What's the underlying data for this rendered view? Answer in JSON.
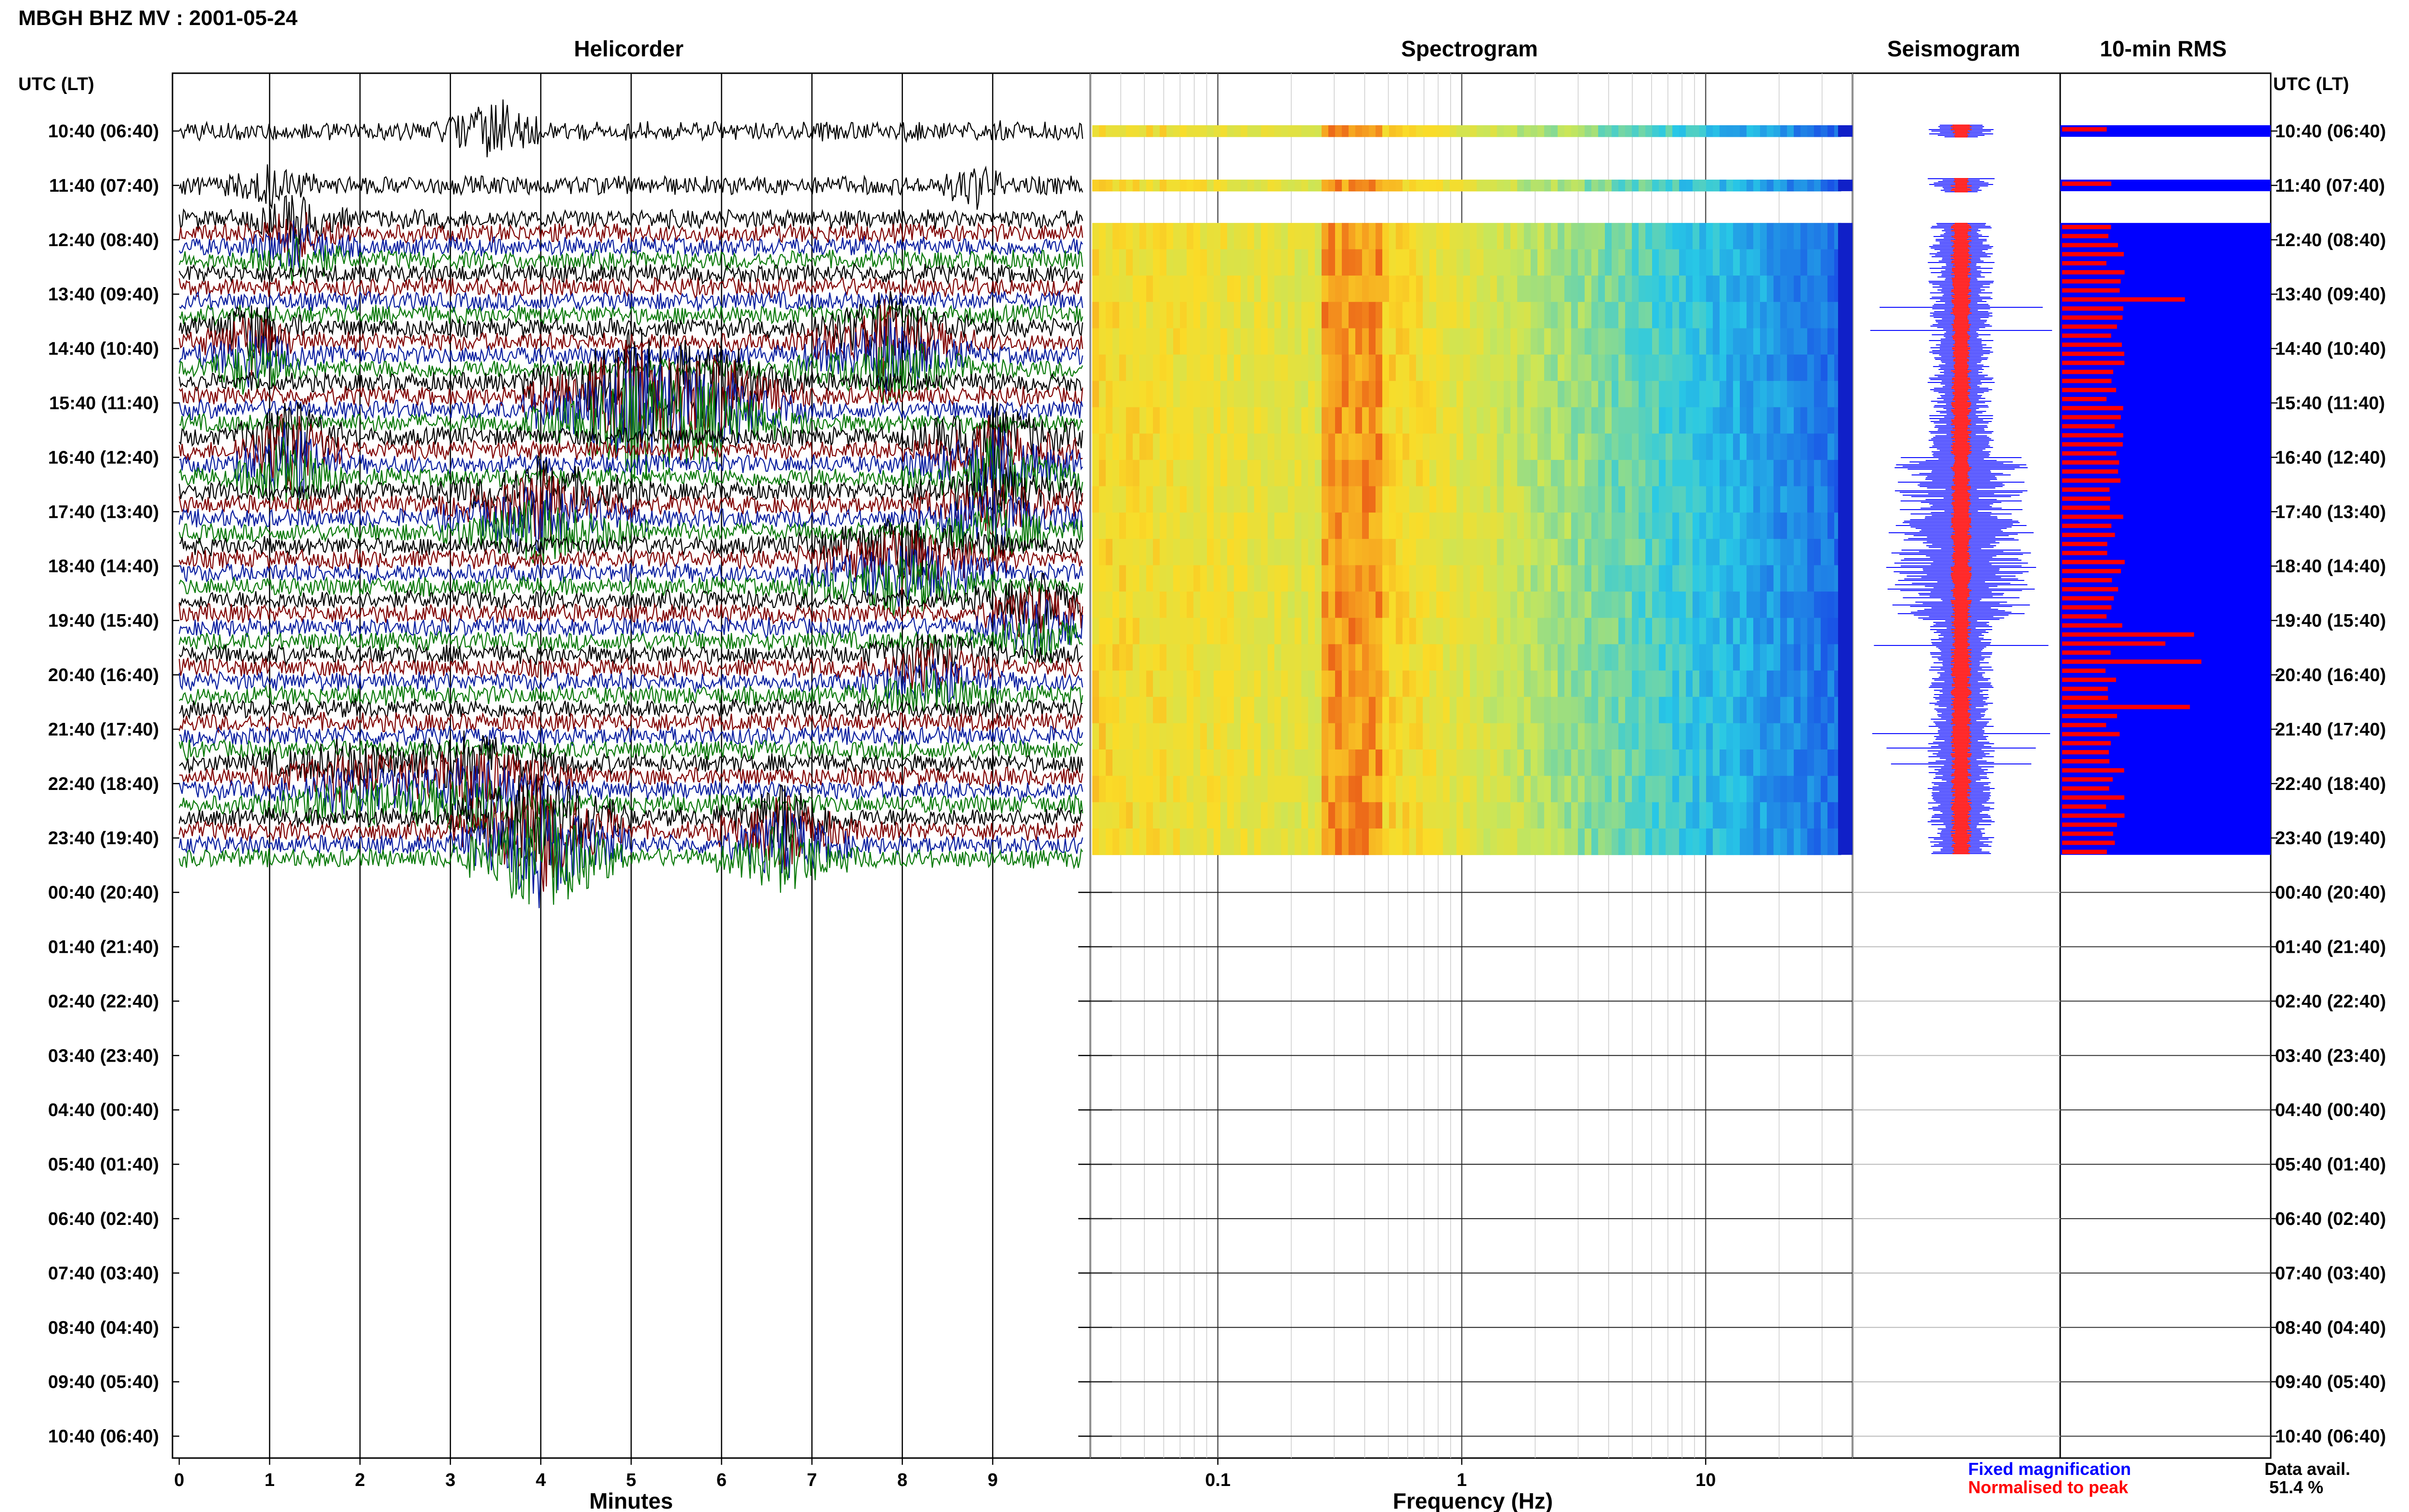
{
  "header": {
    "title": "MBGH BHZ MV : 2001-05-24"
  },
  "panels": {
    "helicorder": "Helicorder",
    "spectrogram": "Spectrogram",
    "seismogram": "Seismogram",
    "rms": "10-min RMS"
  },
  "axes": {
    "time_header": "UTC (LT)",
    "minutes_label": "Minutes",
    "frequency_label": "Frequency (Hz)"
  },
  "legend": {
    "fixed": "Fixed magnification",
    "normalised": "Normalised to peak",
    "data_avail_label": "Data avail.",
    "data_avail_value": "51.4 %"
  },
  "colors": {
    "trace_black": "#000000",
    "trace_red": "#800000",
    "trace_blue": "#0a1fa0",
    "trace_green": "#0a7a0a",
    "seis_blue": "#1010ff",
    "seis_red": "#ff0000",
    "rms_blue": "#0000ff",
    "rms_red": "#ff0000"
  },
  "chart_data": [
    {
      "type": "line",
      "title": "Helicorder",
      "xlabel": "Minutes",
      "ylabel": "UTC (LT)",
      "x_ticks": [
        "0",
        "1",
        "2",
        "3",
        "4",
        "5",
        "6",
        "7",
        "8",
        "9"
      ],
      "xlim": [
        0,
        10
      ],
      "rows": [
        "10:40 (06:40)",
        "11:40 (07:40)",
        "12:40 (08:40)",
        "13:40 (09:40)",
        "14:40 (10:40)",
        "15:40 (11:40)",
        "16:40 (12:40)",
        "17:40 (13:40)",
        "18:40 (14:40)",
        "19:40 (15:40)",
        "20:40 (16:40)",
        "21:40 (17:40)",
        "22:40 (18:40)",
        "23:40 (19:40)",
        "00:40 (20:40)",
        "01:40 (21:40)",
        "02:40 (22:40)",
        "03:40 (23:40)",
        "04:40 (00:40)",
        "05:40 (01:40)",
        "06:40 (02:40)",
        "07:40 (03:40)",
        "08:40 (04:40)",
        "09:40 (05:40)",
        "10:40 (06:40)"
      ],
      "data_rows": 14
    },
    {
      "type": "heatmap",
      "title": "Spectrogram",
      "xlabel": "Frequency (Hz)",
      "x_scale": "log",
      "x_ticks": [
        "0.1",
        "1",
        "10"
      ],
      "xlim": [
        0.03,
        40
      ],
      "peak_band_hz": [
        0.25,
        0.45
      ]
    },
    {
      "type": "line",
      "title": "Seismogram"
    },
    {
      "type": "bar",
      "title": "10-min RMS",
      "orientation": "horizontal"
    }
  ],
  "right_axis": {
    "labels": [
      "10:40 (06:40)",
      "11:40 (07:40)",
      "12:40 (08:40)",
      "13:40 (09:40)",
      "14:40 (10:40)",
      "15:40 (11:40)",
      "16:40 (12:40)",
      "17:40 (13:40)",
      "18:40 (14:40)",
      "19:40 (15:40)",
      "20:40 (16:40)",
      "21:40 (17:40)",
      "22:40 (18:40)",
      "23:40 (19:40)",
      "00:40 (20:40)",
      "01:40 (21:40)",
      "02:40 (22:40)",
      "03:40 (23:40)",
      "04:40 (00:40)",
      "05:40 (01:40)",
      "06:40 (02:40)",
      "07:40 (03:40)",
      "08:40 (04:40)",
      "09:40 (05:40)",
      "10:40 (06:40)"
    ]
  }
}
